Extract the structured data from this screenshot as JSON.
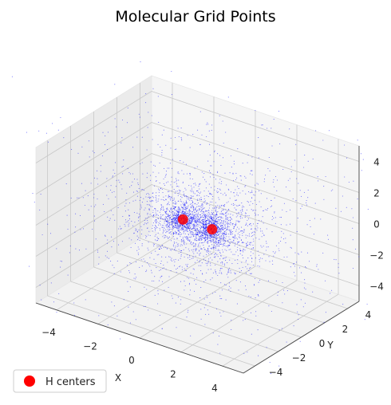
{
  "chart_data": {
    "type": "scatter",
    "projection": "3d",
    "title": "Molecular Grid Points",
    "xlabel": "X",
    "ylabel": "Y",
    "zlabel": "",
    "xlim": [
      -5,
      5
    ],
    "ylim": [
      -5,
      5
    ],
    "zlim": [
      -5,
      5
    ],
    "x_ticks": [
      -4,
      -2,
      0,
      2,
      4
    ],
    "y_ticks": [
      -4,
      -2,
      0,
      2,
      4
    ],
    "z_ticks": [
      -4,
      -2,
      0,
      2,
      4
    ],
    "x_tick_labels": [
      "−4",
      "−2",
      "0",
      "2",
      "4"
    ],
    "y_tick_labels": [
      "−4",
      "−2",
      "0",
      "2",
      "4"
    ],
    "z_tick_labels": [
      "−4",
      "−2",
      "0",
      "2",
      "4"
    ],
    "grid": true,
    "legend_position": "lower-left",
    "series": [
      {
        "kind": "grid-points",
        "color": "#0000ff",
        "point_count": 3500,
        "centers": [
          [
            -0.7,
            0,
            0
          ],
          [
            0.7,
            0,
            0
          ]
        ]
      },
      {
        "name": "H centers",
        "kind": "atoms",
        "color": "#ff0000",
        "points": [
          {
            "x": -0.7,
            "y": 0,
            "z": 0
          },
          {
            "x": 0.7,
            "y": 0,
            "z": 0
          }
        ]
      }
    ]
  }
}
